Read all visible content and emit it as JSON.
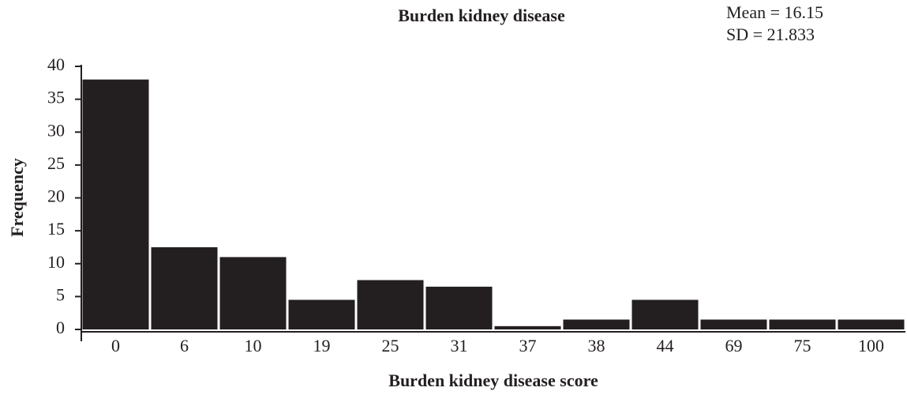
{
  "chart_data": {
    "type": "bar",
    "title": "Burden kidney disease",
    "annotations": [
      "Mean = 16.15",
      "SD = 21.833"
    ],
    "x_label": "Burden kidney disease score",
    "y_label": "Frequency",
    "categories": [
      "0",
      "6",
      "10",
      "19",
      "25",
      "31",
      "37",
      "38",
      "44",
      "69",
      "75",
      "100"
    ],
    "values": [
      38,
      12.5,
      11,
      4.5,
      7.5,
      6.5,
      0.5,
      1.5,
      4.5,
      1.5,
      1.5,
      1.5
    ],
    "color": "#231f20",
    "ylim": [
      0,
      40
    ],
    "yticks": [
      0,
      5,
      10,
      15,
      20,
      25,
      30,
      35,
      40
    ]
  }
}
